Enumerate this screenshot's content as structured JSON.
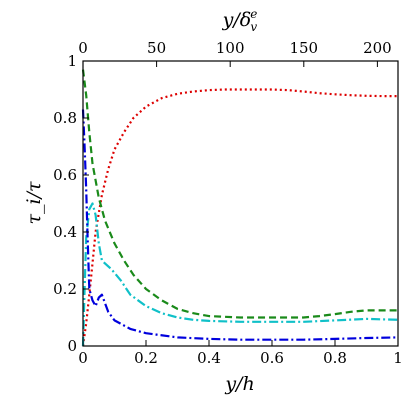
{
  "chart_data": {
    "type": "line",
    "title": "",
    "xlabel": "y/h",
    "ylabel": "τ_i/τ",
    "top_xlabel": "y/δ_v^e",
    "xlim": [
      0,
      1
    ],
    "ylim": [
      0,
      1
    ],
    "top_xlim": [
      0,
      214
    ],
    "x_ticks": [
      "0",
      "0.2",
      "0.4",
      "0.6",
      "0.8",
      "1"
    ],
    "y_ticks": [
      "0",
      "0.2",
      "0.4",
      "0.6",
      "0.8",
      "1"
    ],
    "top_ticks": [
      "0",
      "50",
      "100",
      "150",
      "200"
    ],
    "grid": false,
    "series": [
      {
        "color": "#dd0000",
        "style": "dotted",
        "x": [
          0.0,
          0.01,
          0.02,
          0.03,
          0.04,
          0.06,
          0.08,
          0.1,
          0.13,
          0.16,
          0.2,
          0.25,
          0.3,
          0.35,
          0.4,
          0.45,
          0.5,
          0.55,
          0.6,
          0.65,
          0.7,
          0.75,
          0.8,
          0.85,
          0.9,
          0.95,
          1.0
        ],
        "y": [
          0.0,
          0.08,
          0.18,
          0.29,
          0.4,
          0.53,
          0.62,
          0.69,
          0.75,
          0.8,
          0.84,
          0.87,
          0.885,
          0.893,
          0.898,
          0.9,
          0.9,
          0.9,
          0.9,
          0.898,
          0.893,
          0.887,
          0.883,
          0.88,
          0.878,
          0.877,
          0.877
        ]
      },
      {
        "color": "#1a8a1a",
        "style": "dashed",
        "x": [
          0.0,
          0.01,
          0.02,
          0.03,
          0.05,
          0.07,
          0.1,
          0.13,
          0.16,
          0.2,
          0.25,
          0.3,
          0.35,
          0.4,
          0.5,
          0.6,
          0.7,
          0.75,
          0.8,
          0.85,
          0.9,
          0.95,
          1.0
        ],
        "y": [
          0.97,
          0.88,
          0.75,
          0.64,
          0.52,
          0.44,
          0.36,
          0.3,
          0.25,
          0.2,
          0.16,
          0.13,
          0.115,
          0.105,
          0.1,
          0.1,
          0.1,
          0.105,
          0.112,
          0.12,
          0.125,
          0.125,
          0.125
        ]
      },
      {
        "color": "#10c0c8",
        "style": "dash-dot",
        "x": [
          0.0,
          0.005,
          0.01,
          0.02,
          0.03,
          0.04,
          0.05,
          0.06,
          0.07,
          0.09,
          0.12,
          0.15,
          0.2,
          0.25,
          0.3,
          0.35,
          0.4,
          0.5,
          0.6,
          0.7,
          0.8,
          0.9,
          1.0
        ],
        "y": [
          0.0,
          0.2,
          0.38,
          0.48,
          0.5,
          0.46,
          0.36,
          0.3,
          0.29,
          0.27,
          0.23,
          0.18,
          0.14,
          0.115,
          0.1,
          0.092,
          0.088,
          0.085,
          0.085,
          0.085,
          0.09,
          0.095,
          0.092
        ]
      },
      {
        "color": "#0000dd",
        "style": "dash-dot",
        "x": [
          0.0,
          0.005,
          0.01,
          0.015,
          0.02,
          0.03,
          0.04,
          0.05,
          0.06,
          0.08,
          0.1,
          0.15,
          0.2,
          0.3,
          0.4,
          0.5,
          0.6,
          0.7,
          0.8,
          0.9,
          1.0
        ],
        "y": [
          0.83,
          0.7,
          0.55,
          0.37,
          0.2,
          0.16,
          0.14,
          0.17,
          0.18,
          0.12,
          0.09,
          0.06,
          0.045,
          0.03,
          0.025,
          0.022,
          0.022,
          0.022,
          0.025,
          0.028,
          0.03
        ]
      }
    ]
  }
}
